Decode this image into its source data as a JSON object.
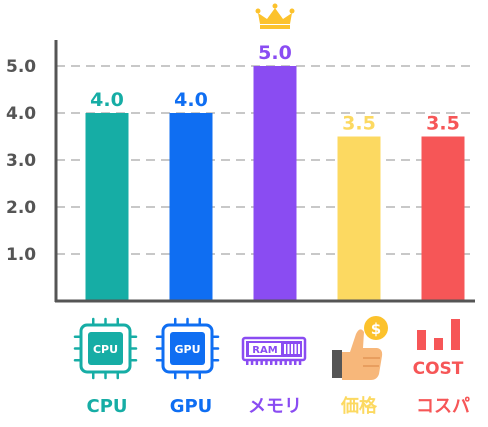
{
  "chart_data": {
    "type": "bar",
    "categories": [
      "CPU",
      "GPU",
      "メモリ",
      "価格",
      "コスパ"
    ],
    "values": [
      4.0,
      4.0,
      5.0,
      3.5,
      3.5
    ],
    "value_labels": [
      "4.0",
      "4.0",
      "5.0",
      "3.5",
      "3.5"
    ],
    "y_ticks": [
      "1.0",
      "2.0",
      "3.0",
      "4.0",
      "5.0"
    ],
    "ylim": [
      0,
      5.5
    ],
    "grid": "horizontal-dashed",
    "colors": [
      "#16ada5",
      "#0f6ef2",
      "#8a4cf2",
      "#fcd961",
      "#f65657"
    ],
    "highlight": {
      "category": "メモリ",
      "icon": "crown-icon",
      "color": "#fcc22c"
    }
  },
  "icons": [
    {
      "name": "cpu-chip-icon",
      "text": "CPU",
      "color": "#16ada5"
    },
    {
      "name": "gpu-chip-icon",
      "text": "GPU",
      "color": "#0f6ef2"
    },
    {
      "name": "ram-stick-icon",
      "text": "RAM",
      "color": "#8a4cf2"
    },
    {
      "name": "thumbs-up-coin-icon",
      "text": "$",
      "color": "#fcc22c"
    },
    {
      "name": "cost-bars-icon",
      "text": "COST",
      "color": "#f65657"
    }
  ]
}
